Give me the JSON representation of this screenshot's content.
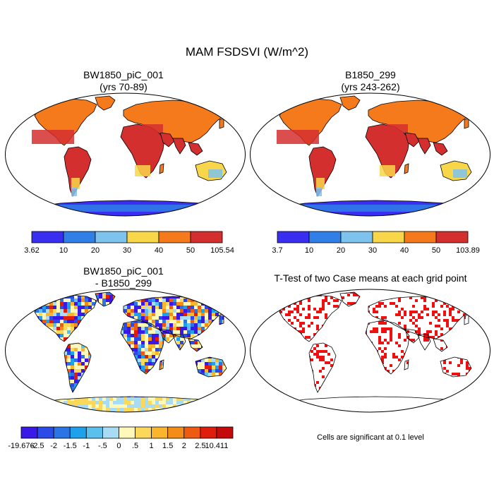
{
  "title": "MAM FSDSVI (W/m^2)",
  "panels": [
    {
      "id": "a",
      "title_line1": "BW1850_piC_001",
      "title_line2": "(yrs 70-89)"
    },
    {
      "id": "b",
      "title_line1": "B1850_299",
      "title_line2": "(yrs 243-262)"
    },
    {
      "id": "c",
      "title_line1": "BW1850_piC_001",
      "title_line2": "- B1850_299"
    },
    {
      "id": "d",
      "title_line1": "T-Test of two Case means at each grid point",
      "title_line2": ""
    }
  ],
  "colorbars": {
    "a": {
      "labels": [
        "3.62",
        "10",
        "20",
        "30",
        "40",
        "50",
        "105.54"
      ],
      "colors": [
        "#3a2ef0",
        "#2f7fe6",
        "#7ec2ee",
        "#f8d64a",
        "#f57a1c",
        "#d42f2f"
      ]
    },
    "b": {
      "labels": [
        "3.7",
        "10",
        "20",
        "30",
        "40",
        "50",
        "103.89"
      ],
      "colors": [
        "#3a2ef0",
        "#2f7fe6",
        "#7ec2ee",
        "#f8d64a",
        "#f57a1c",
        "#d42f2f"
      ]
    },
    "c": {
      "labels": [
        "-19.676",
        "-2.5",
        "-2",
        "-1.5",
        "-1",
        "-.5",
        "0",
        ".5",
        "1",
        "1.5",
        "2",
        "2.5",
        "10.411"
      ],
      "colors": [
        "#3a18e8",
        "#2b4be8",
        "#2a74e6",
        "#1ea0ea",
        "#5cc0ee",
        "#a8dcf4",
        "#fff8b8",
        "#fbd85a",
        "#f9b62c",
        "#f58c18",
        "#ee5a10",
        "#e01c0c",
        "#c40a0a"
      ]
    }
  },
  "significance_note": "Cells are significant at 0.1 level",
  "colors": {
    "land_low": "#f57a1c",
    "land_high": "#d42f2f",
    "significant": "#ee1111"
  }
}
